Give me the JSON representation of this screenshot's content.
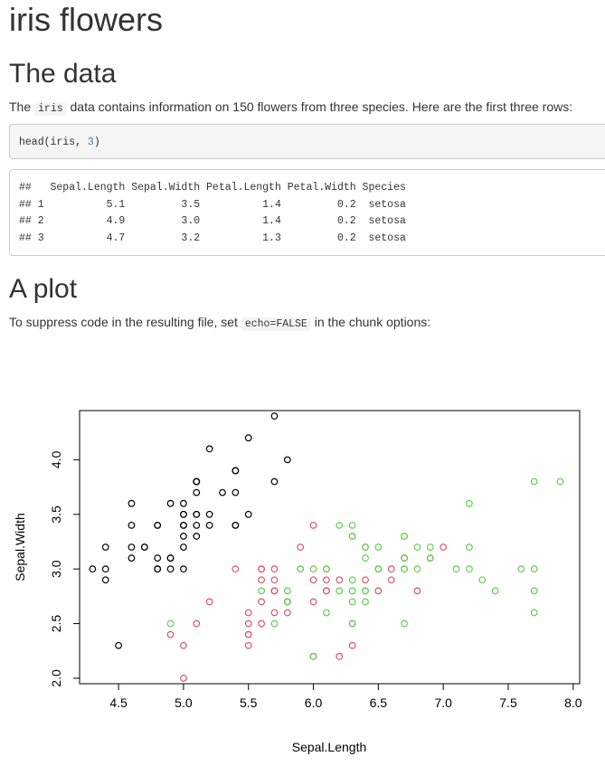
{
  "page": {
    "title": "iris flowers",
    "section_data": "The data",
    "intro_before": "The ",
    "intro_code": "iris",
    "intro_after": " data contains information on 150 flowers from three species. Here are the first three rows:",
    "code_fn": "head(iris, ",
    "code_num": "3",
    "code_close": ")",
    "output_lines": [
      "##   Sepal.Length Sepal.Width Petal.Length Petal.Width Species",
      "## 1          5.1         3.5          1.4         0.2  setosa",
      "## 2          4.9         3.0          1.4         0.2  setosa",
      "## 3          4.7         3.2          1.3         0.2  setosa"
    ],
    "section_plot": "A plot",
    "plot_text_before": "To suppress code in the resulting file, set ",
    "plot_text_code": "echo=FALSE",
    "plot_text_after": " in the chunk options:"
  },
  "chart_data": {
    "type": "scatter",
    "title": "",
    "xlabel": "Sepal.Length",
    "ylabel": "Sepal.Width",
    "xlim": [
      4.2,
      8.05
    ],
    "ylim": [
      1.95,
      4.45
    ],
    "x_ticks": [
      "4.5",
      "5.0",
      "5.5",
      "6.0",
      "6.5",
      "7.0",
      "7.5",
      "8.0"
    ],
    "y_ticks": [
      "2.0",
      "2.5",
      "3.0",
      "3.5",
      "4.0"
    ],
    "marker": "open-circle",
    "series": [
      {
        "color": "#000000",
        "points": [
          [
            5.1,
            3.5
          ],
          [
            4.9,
            3.0
          ],
          [
            4.7,
            3.2
          ],
          [
            4.6,
            3.1
          ],
          [
            5.0,
            3.6
          ],
          [
            5.4,
            3.9
          ],
          [
            4.6,
            3.4
          ],
          [
            5.0,
            3.4
          ],
          [
            4.4,
            2.9
          ],
          [
            4.9,
            3.1
          ],
          [
            5.4,
            3.7
          ],
          [
            4.8,
            3.4
          ],
          [
            4.8,
            3.0
          ],
          [
            4.3,
            3.0
          ],
          [
            5.8,
            4.0
          ],
          [
            5.7,
            4.4
          ],
          [
            5.4,
            3.9
          ],
          [
            5.1,
            3.5
          ],
          [
            5.7,
            3.8
          ],
          [
            5.1,
            3.8
          ],
          [
            5.4,
            3.4
          ],
          [
            5.1,
            3.7
          ],
          [
            4.6,
            3.6
          ],
          [
            5.1,
            3.3
          ],
          [
            4.8,
            3.4
          ],
          [
            5.0,
            3.0
          ],
          [
            5.0,
            3.4
          ],
          [
            5.2,
            3.5
          ],
          [
            5.2,
            3.4
          ],
          [
            4.7,
            3.2
          ],
          [
            4.8,
            3.1
          ],
          [
            5.4,
            3.4
          ],
          [
            5.2,
            4.1
          ],
          [
            5.5,
            4.2
          ],
          [
            4.9,
            3.1
          ],
          [
            5.0,
            3.2
          ],
          [
            5.5,
            3.5
          ],
          [
            4.9,
            3.6
          ],
          [
            4.4,
            3.0
          ],
          [
            5.1,
            3.4
          ],
          [
            5.0,
            3.5
          ],
          [
            4.5,
            2.3
          ],
          [
            4.4,
            3.2
          ],
          [
            5.0,
            3.5
          ],
          [
            5.1,
            3.8
          ],
          [
            4.8,
            3.0
          ],
          [
            5.1,
            3.8
          ],
          [
            4.6,
            3.2
          ],
          [
            5.3,
            3.7
          ],
          [
            5.0,
            3.3
          ]
        ]
      },
      {
        "color": "#df536b",
        "points": [
          [
            7.0,
            3.2
          ],
          [
            6.4,
            3.2
          ],
          [
            6.9,
            3.1
          ],
          [
            5.5,
            2.3
          ],
          [
            6.5,
            2.8
          ],
          [
            5.7,
            2.8
          ],
          [
            6.3,
            3.3
          ],
          [
            4.9,
            2.4
          ],
          [
            6.6,
            2.9
          ],
          [
            5.2,
            2.7
          ],
          [
            5.0,
            2.0
          ],
          [
            5.9,
            3.0
          ],
          [
            6.0,
            2.2
          ],
          [
            6.1,
            2.9
          ],
          [
            5.6,
            2.9
          ],
          [
            6.7,
            3.1
          ],
          [
            5.6,
            3.0
          ],
          [
            5.8,
            2.7
          ],
          [
            6.2,
            2.2
          ],
          [
            5.6,
            2.5
          ],
          [
            5.9,
            3.2
          ],
          [
            6.1,
            2.8
          ],
          [
            6.3,
            2.5
          ],
          [
            6.1,
            2.8
          ],
          [
            6.4,
            2.9
          ],
          [
            6.6,
            3.0
          ],
          [
            6.8,
            2.8
          ],
          [
            6.7,
            3.0
          ],
          [
            6.0,
            2.9
          ],
          [
            5.7,
            2.6
          ],
          [
            5.5,
            2.4
          ],
          [
            5.5,
            2.4
          ],
          [
            5.8,
            2.7
          ],
          [
            6.0,
            2.7
          ],
          [
            5.4,
            3.0
          ],
          [
            6.0,
            3.4
          ],
          [
            6.7,
            3.1
          ],
          [
            6.3,
            2.3
          ],
          [
            5.6,
            3.0
          ],
          [
            5.5,
            2.5
          ],
          [
            5.5,
            2.6
          ],
          [
            6.1,
            3.0
          ],
          [
            5.8,
            2.6
          ],
          [
            5.0,
            2.3
          ],
          [
            5.6,
            2.7
          ],
          [
            5.7,
            3.0
          ],
          [
            5.7,
            2.9
          ],
          [
            6.2,
            2.9
          ],
          [
            5.1,
            2.5
          ],
          [
            5.7,
            2.8
          ]
        ]
      },
      {
        "color": "#61d04f",
        "points": [
          [
            6.3,
            3.3
          ],
          [
            5.8,
            2.7
          ],
          [
            7.1,
            3.0
          ],
          [
            6.3,
            2.9
          ],
          [
            6.5,
            3.0
          ],
          [
            7.6,
            3.0
          ],
          [
            4.9,
            2.5
          ],
          [
            7.3,
            2.9
          ],
          [
            6.7,
            2.5
          ],
          [
            7.2,
            3.6
          ],
          [
            6.5,
            3.2
          ],
          [
            6.4,
            2.7
          ],
          [
            6.8,
            3.0
          ],
          [
            5.7,
            2.5
          ],
          [
            5.8,
            2.8
          ],
          [
            6.4,
            3.2
          ],
          [
            6.5,
            3.0
          ],
          [
            7.7,
            3.8
          ],
          [
            7.7,
            2.6
          ],
          [
            6.0,
            2.2
          ],
          [
            6.9,
            3.2
          ],
          [
            5.6,
            2.8
          ],
          [
            7.7,
            2.8
          ],
          [
            6.3,
            2.7
          ],
          [
            6.7,
            3.3
          ],
          [
            7.2,
            3.2
          ],
          [
            6.2,
            2.8
          ],
          [
            6.1,
            3.0
          ],
          [
            6.4,
            2.8
          ],
          [
            7.2,
            3.0
          ],
          [
            7.4,
            2.8
          ],
          [
            7.9,
            3.8
          ],
          [
            6.4,
            2.8
          ],
          [
            6.3,
            2.8
          ],
          [
            6.1,
            2.6
          ],
          [
            7.7,
            3.0
          ],
          [
            6.3,
            3.4
          ],
          [
            6.4,
            3.1
          ],
          [
            6.0,
            3.0
          ],
          [
            6.9,
            3.1
          ],
          [
            6.7,
            3.1
          ],
          [
            6.9,
            3.1
          ],
          [
            5.8,
            2.7
          ],
          [
            6.8,
            3.2
          ],
          [
            6.7,
            3.3
          ],
          [
            6.7,
            3.0
          ],
          [
            6.3,
            2.5
          ],
          [
            6.5,
            3.0
          ],
          [
            6.2,
            3.4
          ],
          [
            5.9,
            3.0
          ]
        ]
      }
    ]
  }
}
